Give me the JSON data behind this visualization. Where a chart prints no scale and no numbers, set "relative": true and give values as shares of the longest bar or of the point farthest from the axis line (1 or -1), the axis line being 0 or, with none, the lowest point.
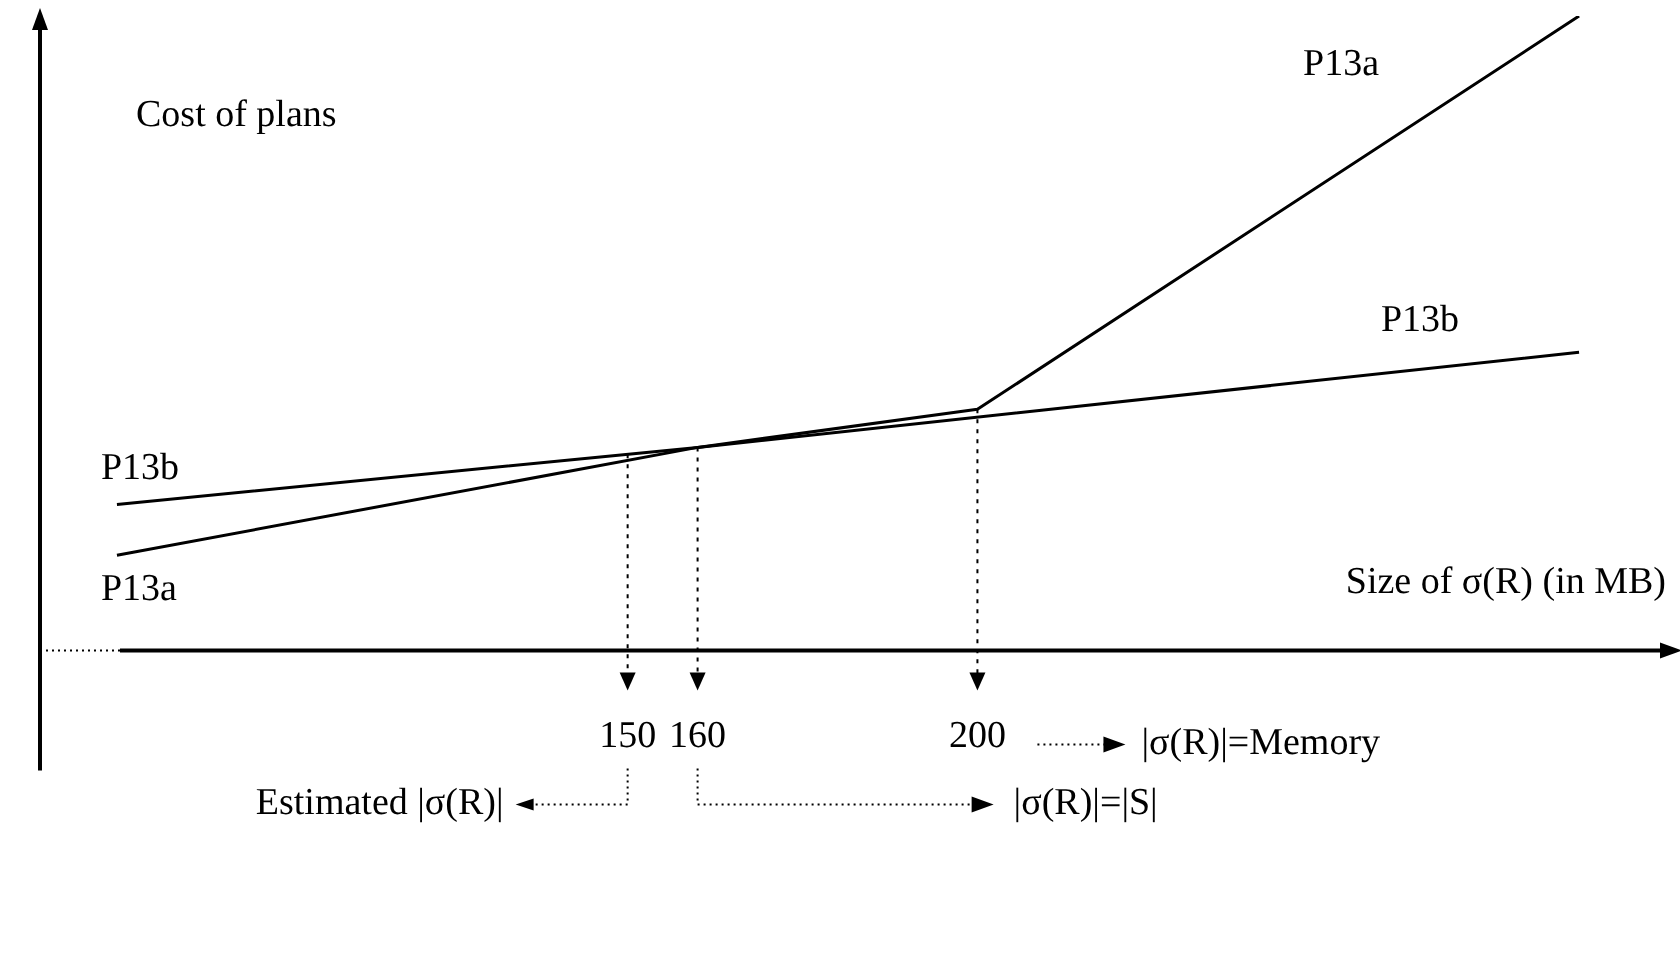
{
  "chart_data": {
    "type": "line",
    "relative": true,
    "xlabel": "Size of σ(R) (in MB)",
    "ylabel": "Cost of plans",
    "xlim": [
      66,
      299
    ],
    "xticks": [
      150,
      160,
      200
    ],
    "series": [
      {
        "name": "P13a",
        "color": "#000000",
        "x": [
          77,
          160,
          200,
          286
        ],
        "values": [
          0.15,
          0.32,
          0.38,
          1
        ]
      },
      {
        "name": "P13b",
        "color": "#000000",
        "x": [
          77,
          160,
          286
        ],
        "values": [
          0.23,
          0.32,
          0.47
        ]
      }
    ],
    "ref_lines": [
      {
        "axis": "x",
        "value": 150,
        "line_style": "dotted"
      },
      {
        "axis": "x",
        "value": 160,
        "line_style": "dotted"
      },
      {
        "axis": "x",
        "value": 200,
        "line_style": "dotted"
      }
    ],
    "annotations": [
      "Estimated |σ(R)|",
      "|σ(R)|=|S|",
      "|σ(R)|=Memory"
    ],
    "grid": false,
    "legend": false,
    "marker": "none",
    "line_style": "solid"
  }
}
